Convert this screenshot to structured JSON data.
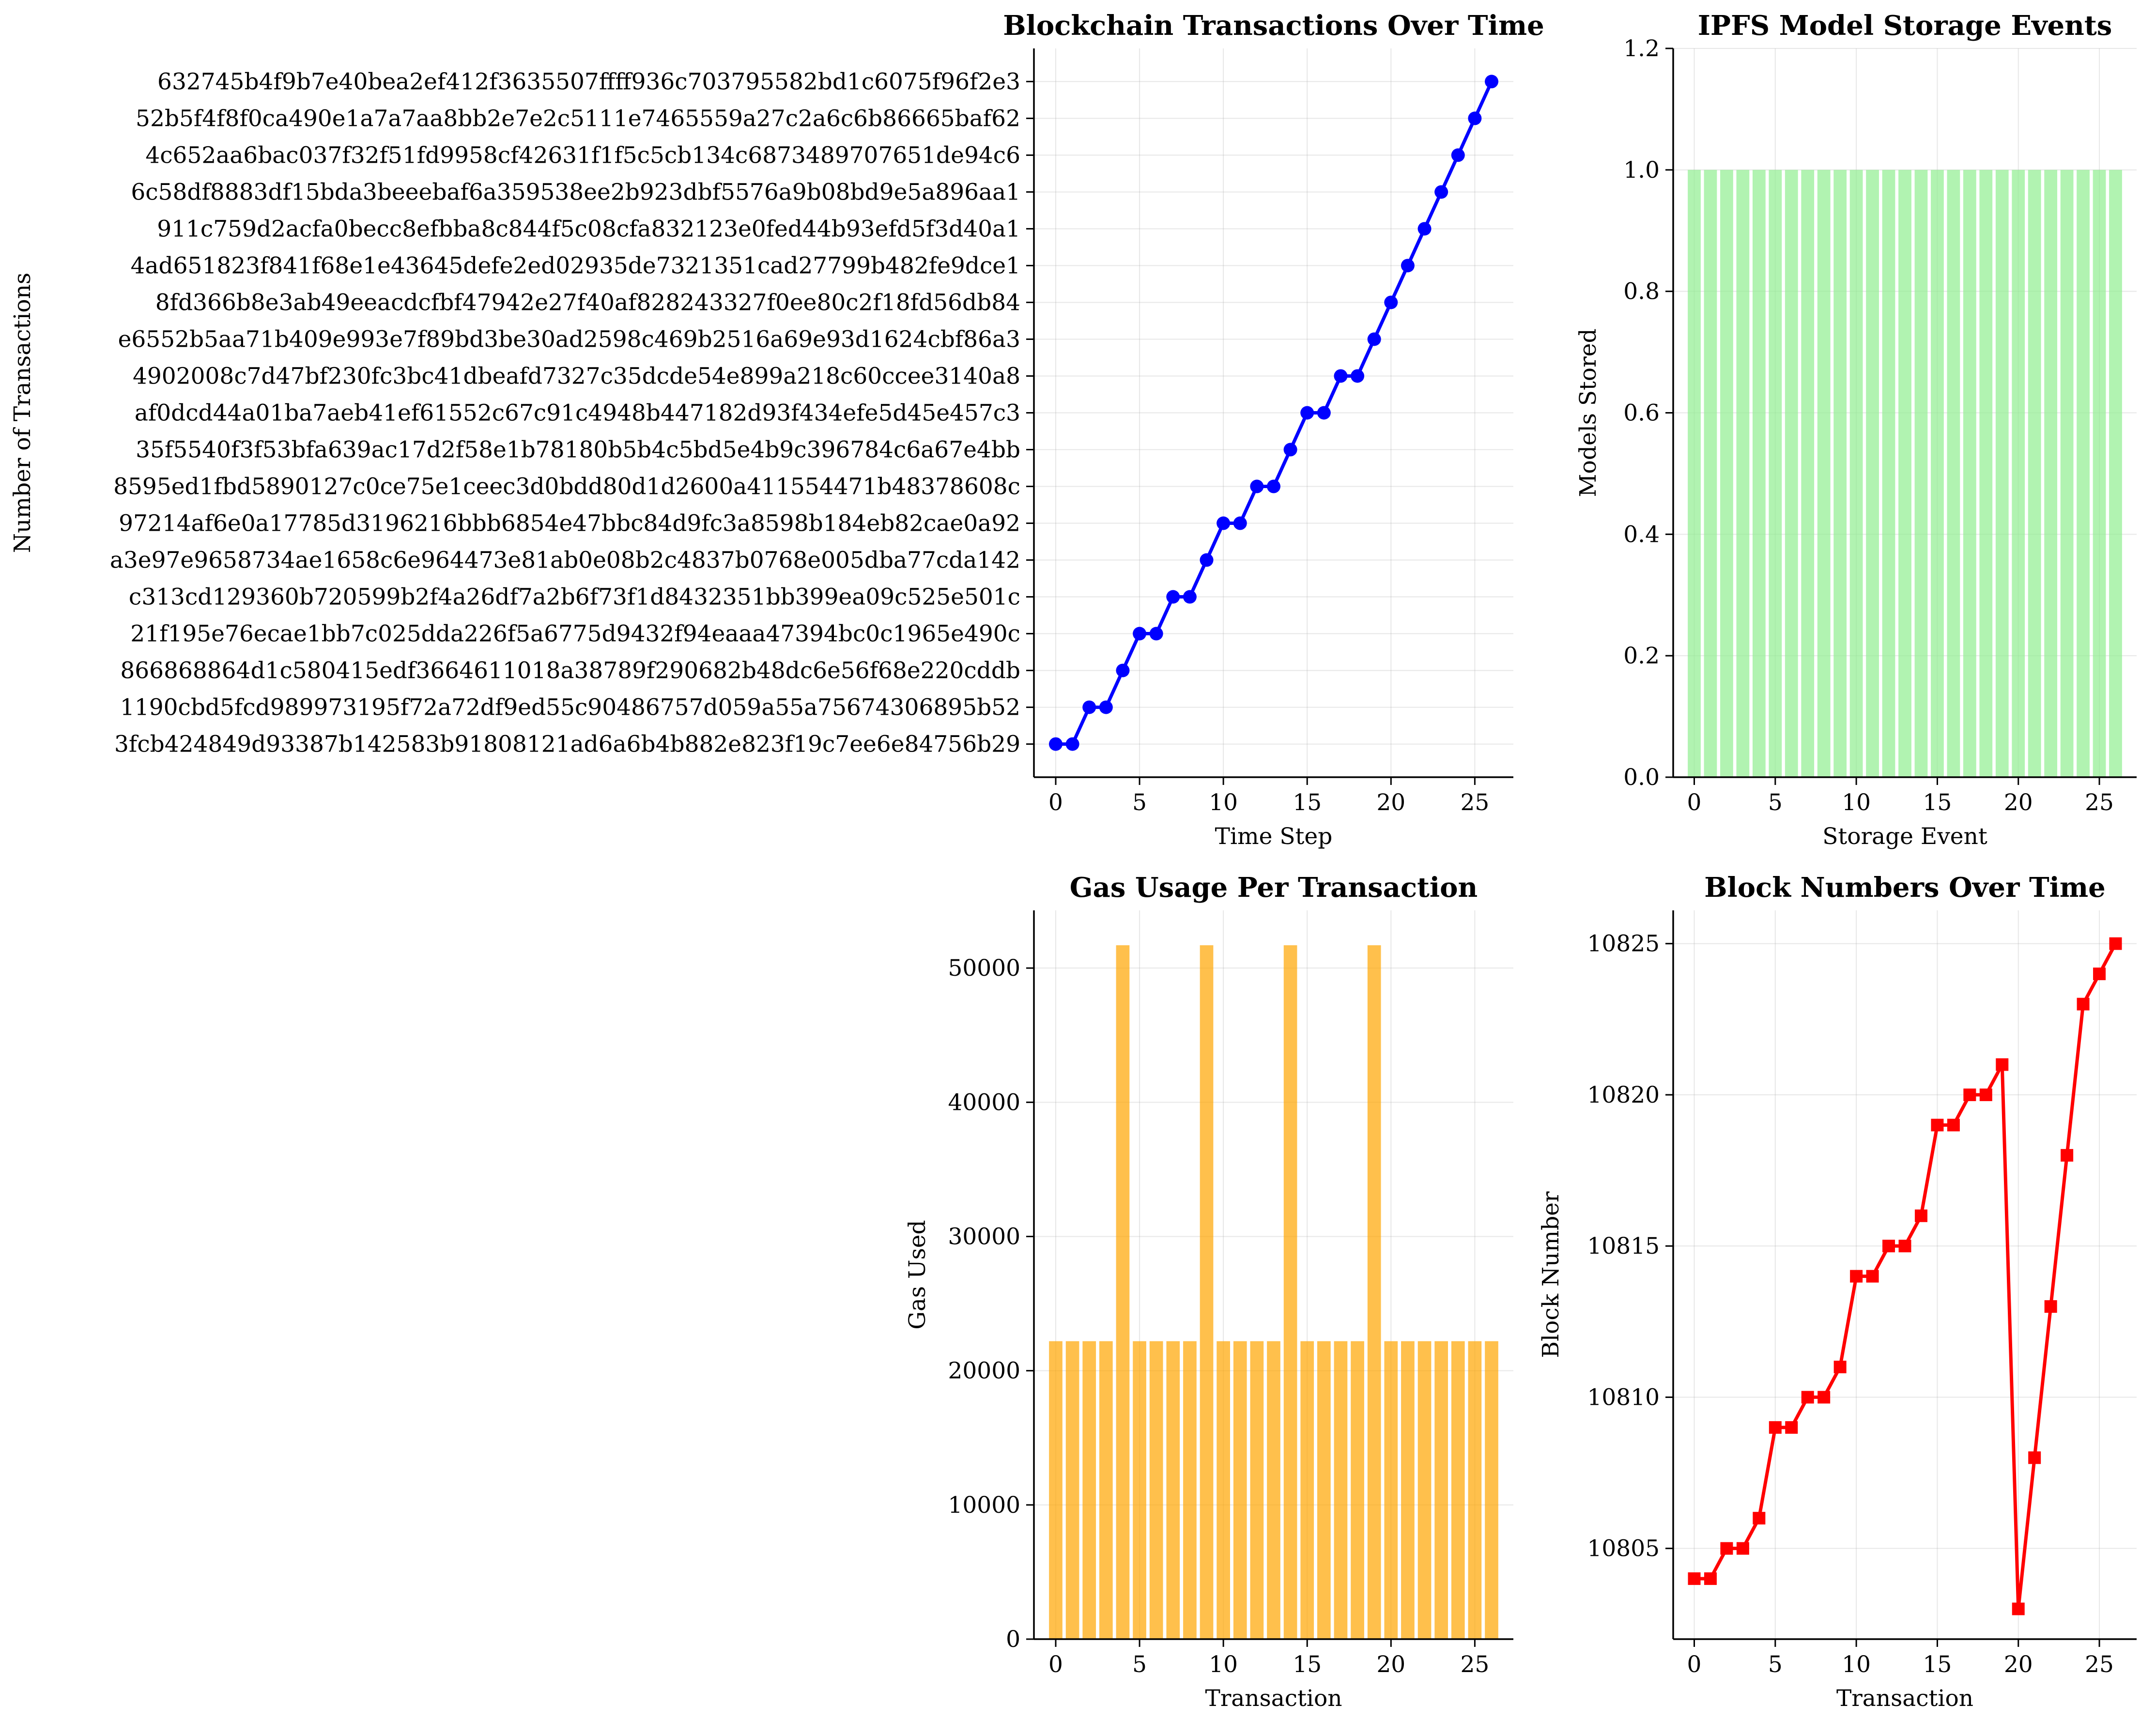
{
  "chart_data": [
    {
      "type": "line",
      "title": "Blockchain Transactions Over Time",
      "xlabel": "Time Step",
      "ylabel": "Number of Transactions",
      "xlim": [
        -1.3,
        27.3
      ],
      "ylim": [
        -0.9,
        18.9
      ],
      "xticks": [
        0,
        5,
        10,
        15,
        20,
        25
      ],
      "grid": true,
      "color": "#0000ff",
      "marker": "circle",
      "categories": [
        "3fcb424849d93387b142583b91808121ad6a6b4b882e823f19c7ee6e84756b29",
        "1190cbd5fcd989973195f72a72df9ed55c90486757d059a55a75674306895b52",
        "866868864d1c580415edf3664611018a38789f290682b48dc6e56f68e220cddb",
        "21f195e76ecae1bb7c025dda226f5a6775d9432f94eaaa47394bc0c1965e490c",
        "c313cd129360b720599b2f4a26df7a2b6f73f1d8432351bb399ea09c525e501c",
        "a3e97e9658734ae1658c6e964473e81ab0e08b2c4837b0768e005dba77cda142",
        "97214af6e0a17785d3196216bbb6854e47bbc84d9fc3a8598b184eb82cae0a92",
        "8595ed1fbd5890127c0ce75e1ceec3d0bdd80d1d2600a411554471b48378608c",
        "35f5540f3f53bfa639ac17d2f58e1b78180b5b4c5bd5e4b9c396784c6a67e4bb",
        "af0dcd44a01ba7aeb41ef61552c67c91c4948b447182d93f434efe5d45e457c3",
        "4902008c7d47bf230fc3bc41dbeafd7327c35dcde54e899a218c60ccee3140a8",
        "e6552b5aa71b409e993e7f89bd3be30ad2598c469b2516a69e93d1624cbf86a3",
        "8fd366b8e3ab49eeacdcfbf47942e27f40af828243327f0ee80c2f18fd56db84",
        "4ad651823f841f68e1e43645defe2ed02935de7321351cad27799b482fe9dce1",
        "911c759d2acfa0becc8efbba8c844f5c08cfa832123e0fed44b93efd5f3d40a1",
        "6c58df8883df15bda3beeebaf6a359538ee2b923dbf5576a9b08bd9e5a896aa1",
        "4c652aa6bac037f32f51fd9958cf42631f1f5c5cb134c6873489707651de94c6",
        "52b5f4f8f0ca490e1a7a7aa8bb2e7e2c5111e7465559a27c2a6c6b86665baf62",
        "632745b4f9b7e40bea2ef412f3635507ffff936c703795582bd1c6075f96f2e3"
      ],
      "x": [
        0,
        1,
        2,
        3,
        4,
        5,
        6,
        7,
        8,
        9,
        10,
        11,
        12,
        13,
        14,
        15,
        16,
        17,
        18,
        19,
        20,
        21,
        22,
        23,
        24,
        25,
        26
      ],
      "values": [
        0,
        0,
        1,
        1,
        2,
        3,
        3,
        4,
        4,
        5,
        6,
        6,
        7,
        7,
        8,
        9,
        9,
        10,
        10,
        11,
        12,
        13,
        14,
        15,
        16,
        17,
        18
      ]
    },
    {
      "type": "bar",
      "title": "IPFS Model Storage Events",
      "xlabel": "Storage Event",
      "ylabel": "Models Stored",
      "xlim": [
        -1.3,
        27.3
      ],
      "ylim": [
        0,
        1.2
      ],
      "xticks": [
        0,
        5,
        10,
        15,
        20,
        25
      ],
      "yticks": [
        "0.0",
        "0.2",
        "0.4",
        "0.6",
        "0.8",
        "1.0",
        "1.2"
      ],
      "grid": true,
      "color": "#90ee90",
      "x": [
        0,
        1,
        2,
        3,
        4,
        5,
        6,
        7,
        8,
        9,
        10,
        11,
        12,
        13,
        14,
        15,
        16,
        17,
        18,
        19,
        20,
        21,
        22,
        23,
        24,
        25,
        26
      ],
      "values": [
        1,
        1,
        1,
        1,
        1,
        1,
        1,
        1,
        1,
        1,
        1,
        1,
        1,
        1,
        1,
        1,
        1,
        1,
        1,
        1,
        1,
        1,
        1,
        1,
        1,
        1,
        1
      ]
    },
    {
      "type": "bar",
      "title": "Gas Usage Per Transaction",
      "xlabel": "Transaction",
      "ylabel": "Gas Used",
      "xlim": [
        -1.3,
        27.3
      ],
      "ylim": [
        0,
        54300
      ],
      "xticks": [
        0,
        5,
        10,
        15,
        20,
        25
      ],
      "yticks": [
        0,
        10000,
        20000,
        30000,
        40000,
        50000
      ],
      "grid": true,
      "color": "#ffa500",
      "x": [
        0,
        1,
        2,
        3,
        4,
        5,
        6,
        7,
        8,
        9,
        10,
        11,
        12,
        13,
        14,
        15,
        16,
        17,
        18,
        19,
        20,
        21,
        22,
        23,
        24,
        25,
        26
      ],
      "values": [
        22200,
        22200,
        22200,
        22200,
        51700,
        22200,
        22200,
        22200,
        22200,
        51700,
        22200,
        22200,
        22200,
        22200,
        51700,
        22200,
        22200,
        22200,
        22200,
        51700,
        22200,
        22200,
        22200,
        22200,
        22200,
        22200,
        22200
      ]
    },
    {
      "type": "line",
      "title": "Block Numbers Over Time",
      "xlabel": "Transaction",
      "ylabel": "Block Number",
      "xlim": [
        -1.3,
        27.3
      ],
      "ylim": [
        10802,
        10826.1
      ],
      "xticks": [
        0,
        5,
        10,
        15,
        20,
        25
      ],
      "yticks": [
        10805,
        10810,
        10815,
        10820,
        10825
      ],
      "grid": true,
      "color": "#ff0000",
      "marker": "square",
      "x": [
        0,
        1,
        2,
        3,
        4,
        5,
        6,
        7,
        8,
        9,
        10,
        11,
        12,
        13,
        14,
        15,
        16,
        17,
        18,
        19,
        20,
        21,
        22,
        23,
        24,
        25,
        26
      ],
      "values": [
        10804,
        10804,
        10805,
        10805,
        10806,
        10809,
        10809,
        10810,
        10810,
        10811,
        10814,
        10814,
        10815,
        10815,
        10816,
        10819,
        10819,
        10820,
        10820,
        10821,
        10803,
        10808,
        10813,
        10818,
        10823,
        10824,
        10825
      ]
    }
  ]
}
